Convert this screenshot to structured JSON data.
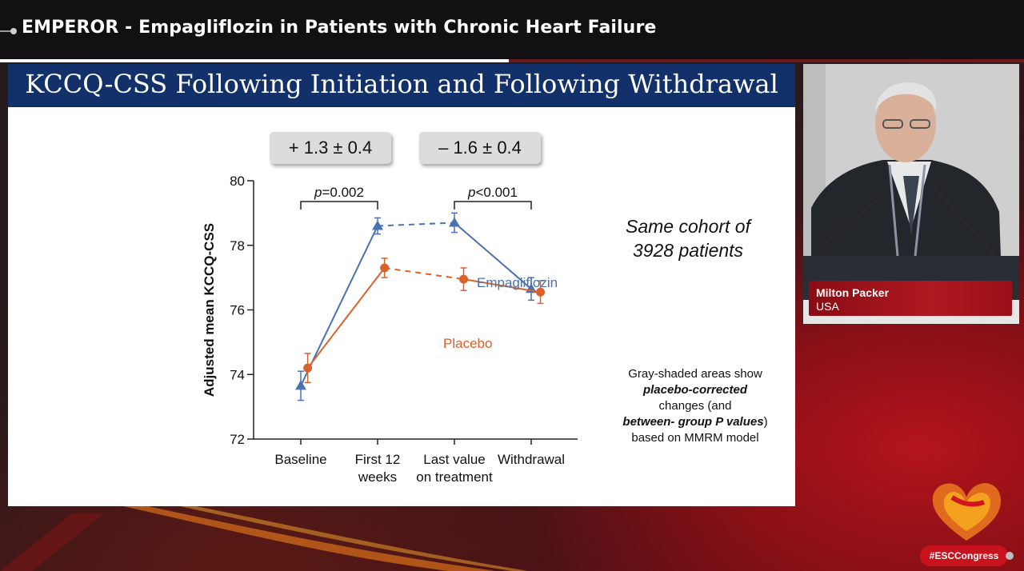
{
  "broadcast": {
    "title": "EMPEROR - Empagliflozin in Patients with Chronic Heart Failure",
    "progress_fraction": 0.497
  },
  "slide": {
    "title": "KCCQ-CSS Following Initiation and Following Withdrawal",
    "badge_left": "+ 1.3 ± 0.4",
    "badge_right": "– 1.6 ± 0.4",
    "p_left": "=0.002",
    "p_right": "<0.001",
    "p_symbol": "p",
    "cohort_line1": "Same cohort of",
    "cohort_line2": "3928 patients",
    "note_line1": "Gray-shaded areas show",
    "note_line2": "placebo-corrected",
    "note_line3": "changes (and",
    "note_line4": "between- group P values",
    "note_line4_suffix": ")",
    "note_line5": "based on MMRM model"
  },
  "chart_data": {
    "type": "line",
    "categories": [
      [
        "Baseline"
      ],
      [
        "First 12",
        "weeks"
      ],
      [
        "Last value",
        "on treatment"
      ],
      [
        "Withdrawal"
      ]
    ],
    "ylabel": "Adjusted mean KCCQ-CSS",
    "ylim": [
      72,
      80
    ],
    "yticks": [
      72,
      74,
      76,
      78,
      80
    ],
    "grid": false,
    "series": [
      {
        "name": "Empagliflozin",
        "color": "#4a72b0",
        "marker": "triangle",
        "points": [
          {
            "x": 0,
            "y": 73.65,
            "err": 0.45
          },
          {
            "x": 1,
            "y": 78.6,
            "err": 0.25
          },
          {
            "x": 2,
            "y": 78.7,
            "err": 0.3
          },
          {
            "x": 3,
            "y": 76.65,
            "err": 0.35
          }
        ],
        "dashed_segment": [
          1,
          2
        ]
      },
      {
        "name": "Placebo",
        "color": "#d9612a",
        "marker": "circle",
        "points": [
          {
            "x": 0.09,
            "y": 74.2,
            "err": 0.45
          },
          {
            "x": 1.09,
            "y": 77.3,
            "err": 0.3
          },
          {
            "x": 2.12,
            "y": 76.95,
            "err": 0.35
          },
          {
            "x": 3.12,
            "y": 76.55,
            "err": 0.35
          }
        ],
        "dashed_segment": [
          1,
          2
        ]
      }
    ]
  },
  "speaker": {
    "name": "Milton Packer",
    "country": "USA"
  },
  "branding": {
    "hashtag": "#ESCCongress",
    "logo_icon": "heart-logo-icon",
    "accent": "#c8121e"
  }
}
